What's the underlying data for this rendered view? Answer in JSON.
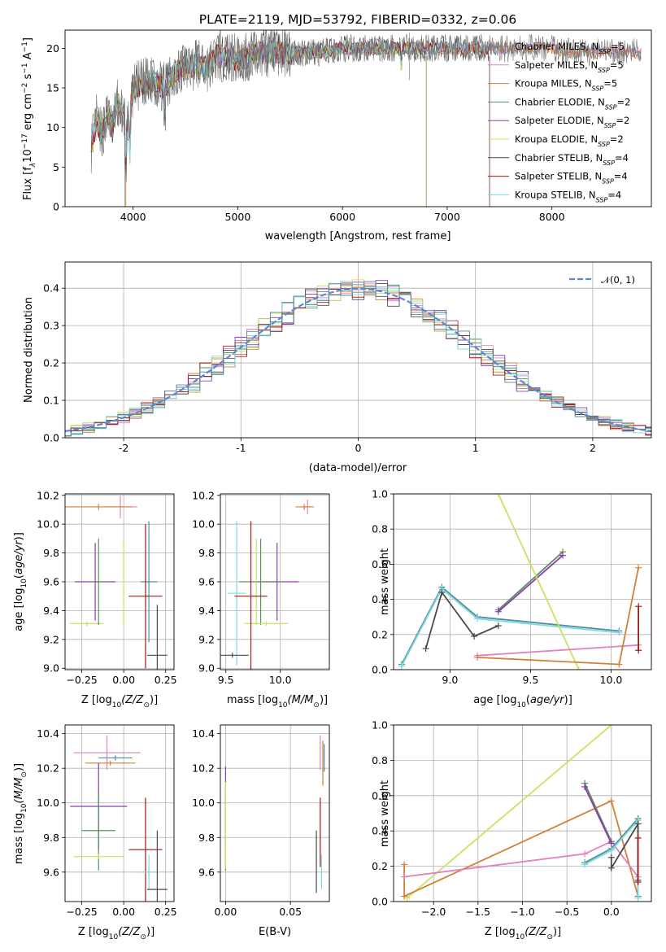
{
  "title": "PLATE=2119, MJD=53792, FIBERID=0332, z=0.06",
  "series_styles": [
    {
      "name": "Chabrier MILES, N$_{SSP}$=5",
      "label_main": "Chabrier MILES, N",
      "label_sub": "SSP",
      "label_tail": "=5",
      "color": "#4e8ea0"
    },
    {
      "name": "Salpeter MILES, N$_{SSP}$=5",
      "label_main": "Salpeter MILES, N",
      "label_sub": "SSP",
      "label_tail": "=5",
      "color": "#e282c0"
    },
    {
      "name": "Kroupa MILES, N$_{SSP}$=5",
      "label_main": "Kroupa MILES, N",
      "label_sub": "SSP",
      "label_tail": "=5",
      "color": "#d0803a"
    },
    {
      "name": "Chabrier ELODIE, N$_{SSP}$=2",
      "label_main": "Chabrier ELODIE, N",
      "label_sub": "SSP",
      "label_tail": "=2",
      "color": "#5e8f5e"
    },
    {
      "name": "Salpeter ELODIE, N$_{SSP}$=2",
      "label_main": "Salpeter ELODIE, N",
      "label_sub": "SSP",
      "label_tail": "=2",
      "color": "#8a3cae"
    },
    {
      "name": "Kroupa ELODIE, N$_{SSP}$=2",
      "label_main": "Kroupa ELODIE, N",
      "label_sub": "SSP",
      "label_tail": "=2",
      "color": "#cde060"
    },
    {
      "name": "Chabrier STELIB, N$_{SSP}$=4",
      "label_main": "Chabrier STELIB, N",
      "label_sub": "SSP",
      "label_tail": "=4",
      "color": "#4a4a4a"
    },
    {
      "name": "Salpeter STELIB, N$_{SSP}$=4",
      "label_main": "Salpeter STELIB, N",
      "label_sub": "SSP",
      "label_tail": "=4",
      "color": "#a01818"
    },
    {
      "name": "Kroupa STELIB, N$_{SSP}$=4",
      "label_main": "Kroupa STELIB, N",
      "label_sub": "SSP",
      "label_tail": "=4",
      "color": "#80d8e0"
    }
  ],
  "chart_data": [
    {
      "id": "spectrum",
      "type": "line",
      "xlabel": "wavelength [Angstrom, rest frame]",
      "ylabel_main": "Flux [f",
      "ylabel_lambda": "λ",
      "ylabel_mid": "10",
      "ylabel_exp1": "−17",
      "ylabel_unit": " erg cm",
      "ylabel_exp2": "−2",
      "ylabel_s": " s",
      "ylabel_exp3": "−1",
      "ylabel_A": " A",
      "ylabel_exp4": "−1",
      "ylabel_end": "]",
      "xlim": [
        3350,
        8950
      ],
      "ylim": [
        0,
        22.3
      ],
      "xticks": [
        4000,
        5000,
        6000,
        7000,
        8000
      ],
      "yticks": [
        0,
        5,
        10,
        15,
        20
      ],
      "legend": "upper-right",
      "observed": {
        "x": [
          3600,
          3650,
          3700,
          3750,
          3800,
          3850,
          3900,
          3950,
          4000,
          4100,
          4200,
          4300,
          4400,
          4500,
          4600,
          4700,
          4800,
          4900,
          5000,
          5200,
          5400,
          5600,
          5800,
          6000,
          6200,
          6400,
          6600,
          6800,
          7000,
          7200,
          7400,
          7600,
          7800,
          8000,
          8200,
          8400,
          8600,
          8800
        ],
        "y": [
          7.5,
          11,
          9,
          11.5,
          10,
          13,
          12,
          9.5,
          15,
          15.5,
          16,
          15,
          17,
          17.5,
          18,
          17.5,
          19,
          19,
          18.5,
          19.5,
          19.5,
          19.5,
          19.5,
          20,
          20,
          20,
          20,
          20,
          20,
          20,
          20,
          20,
          20,
          20,
          19.5,
          19.5,
          19.5,
          19.5
        ]
      }
    },
    {
      "id": "residuals",
      "type": "histogram",
      "xlabel": "(data-model)/error",
      "ylabel": "Normed distribution",
      "xlim": [
        -2.5,
        2.5
      ],
      "ylim": [
        0,
        0.47
      ],
      "xticks": [
        -2,
        -1,
        0,
        1,
        2
      ],
      "yticks": [
        0.0,
        0.1,
        0.2,
        0.3,
        0.4
      ],
      "reference": {
        "name": "N(0,1)",
        "label": "𝒩(0, 1)",
        "mean": 0,
        "sigma": 1
      },
      "legend": "upper-right"
    },
    {
      "id": "age_vs_Z",
      "type": "scatter",
      "xlabel_main": "Z [log",
      "xlabel_sub": "10",
      "xlabel_tail": "(Z/Z",
      "xlabel_sun": "⊙",
      "xlabel_end": ")]",
      "ylabel_main": "age  [log",
      "ylabel_sub": "10",
      "ylabel_tail": "(age/yr)]",
      "xlim": [
        -0.35,
        0.3
      ],
      "ylim": [
        8.99,
        10.21
      ],
      "xticks": [
        -0.25,
        0.0,
        0.25
      ],
      "xticklabels": [
        "−0.25",
        "0.00",
        "0.25"
      ],
      "yticks": [
        9.0,
        9.2,
        9.4,
        9.6,
        9.8,
        10.0,
        10.2
      ],
      "points": [
        {
          "series": 1,
          "x": -0.02,
          "y": 10.12,
          "xerr": 0.1,
          "yerr": 0.08
        },
        {
          "series": 2,
          "x": -0.15,
          "y": 10.12,
          "xerr": 0.2,
          "yerr": 0.02
        },
        {
          "series": 0,
          "x": 0.15,
          "y": 9.6,
          "xerr": 0.05,
          "yerr": 0.42
        },
        {
          "series": 4,
          "x": -0.17,
          "y": 9.6,
          "xerr": 0.12,
          "yerr": 0.27
        },
        {
          "series": 5,
          "x": -0.22,
          "y": 9.31,
          "xerr": 0.1,
          "yerr": 0.0
        },
        {
          "series": 5,
          "x": 0.0,
          "y": 9.6,
          "xerr": 0.0,
          "yerr": 0.3
        },
        {
          "series": 6,
          "x": 0.2,
          "y": 9.09,
          "xerr": 0.06,
          "yerr": 0.35
        },
        {
          "series": 7,
          "x": 0.13,
          "y": 9.5,
          "xerr": 0.1,
          "yerr": 0.5
        },
        {
          "series": 3,
          "x": -0.15,
          "y": 9.6,
          "xerr": 0.05,
          "yerr": 0.3
        }
      ]
    },
    {
      "id": "age_vs_mass",
      "type": "scatter",
      "xlabel_main": "mass [log",
      "xlabel_sub": "10",
      "xlabel_tail": "(M/M",
      "xlabel_sun": "⊙",
      "xlabel_end": ")]",
      "xlim": [
        9.45,
        10.45
      ],
      "ylim": [
        8.99,
        10.21
      ],
      "xticks": [
        9.5,
        10.0
      ],
      "xticklabels": [
        "9.5",
        "10.0"
      ],
      "yticks": [
        9.0,
        9.2,
        9.4,
        9.6,
        9.8,
        10.0,
        10.2
      ],
      "points": [
        {
          "series": 1,
          "x": 10.25,
          "y": 10.12,
          "xerr": 0.06,
          "yerr": 0.05
        },
        {
          "series": 2,
          "x": 10.22,
          "y": 10.12,
          "xerr": 0.08,
          "yerr": 0.02
        },
        {
          "series": 8,
          "x": 9.6,
          "y": 9.52,
          "xerr": 0.08,
          "yerr": 0.5
        },
        {
          "series": 4,
          "x": 9.97,
          "y": 9.6,
          "xerr": 0.2,
          "yerr": 0.27
        },
        {
          "series": 3,
          "x": 9.82,
          "y": 9.6,
          "xerr": 0.2,
          "yerr": 0.3
        },
        {
          "series": 5,
          "x": 9.87,
          "y": 9.31,
          "xerr": 0.2,
          "yerr": 0.0
        },
        {
          "series": 5,
          "x": 9.78,
          "y": 9.6,
          "xerr": 0.0,
          "yerr": 0.3
        },
        {
          "series": 6,
          "x": 9.56,
          "y": 9.09,
          "xerr": 0.15,
          "yerr": 0.0
        },
        {
          "series": 7,
          "x": 9.73,
          "y": 9.5,
          "xerr": 0.15,
          "yerr": 0.52
        }
      ]
    },
    {
      "id": "mass_weight_vs_age",
      "type": "line",
      "xlabel_main": "age  [log",
      "xlabel_sub": "10",
      "xlabel_tail": "(age/yr)]",
      "ylabel": "mass weight",
      "xlim": [
        8.65,
        10.25
      ],
      "ylim": [
        0,
        1.0
      ],
      "xticks": [
        9.0,
        9.5,
        10.0
      ],
      "xticklabels": [
        "9.0",
        "9.5",
        "10.0"
      ],
      "yticks": [
        0.0,
        0.2,
        0.4,
        0.6,
        0.8,
        1.0
      ],
      "series": [
        {
          "series": 0,
          "x": [
            8.7,
            8.95,
            9.17,
            10.05
          ],
          "y": [
            0.03,
            0.47,
            0.3,
            0.22
          ]
        },
        {
          "series": 8,
          "x": [
            8.7,
            8.95,
            9.17,
            10.05
          ],
          "y": [
            0.02,
            0.46,
            0.29,
            0.21
          ]
        },
        {
          "series": 6,
          "x": [
            8.85,
            8.95,
            9.15,
            9.3
          ],
          "y": [
            0.12,
            0.44,
            0.19,
            0.25
          ]
        },
        {
          "series": 3,
          "x": [
            9.3,
            9.7
          ],
          "y": [
            0.34,
            0.67
          ]
        },
        {
          "series": 4,
          "x": [
            9.3,
            9.7
          ],
          "y": [
            0.33,
            0.65
          ]
        },
        {
          "series": 5,
          "x": [
            9.3,
            9.8
          ],
          "y": [
            1.0,
            0.0
          ]
        },
        {
          "series": 1,
          "x": [
            9.17,
            10.17
          ],
          "y": [
            0.08,
            0.14
          ]
        },
        {
          "series": 2,
          "x": [
            9.17,
            10.05,
            10.17
          ],
          "y": [
            0.07,
            0.03,
            0.58
          ]
        },
        {
          "series": 7,
          "x": [
            10.17,
            10.17
          ],
          "y": [
            0.11,
            0.36
          ]
        }
      ]
    },
    {
      "id": "mass_vs_Z",
      "type": "scatter",
      "xlabel_main": "Z [log",
      "xlabel_sub": "10",
      "xlabel_tail": "(Z/Z",
      "xlabel_sun": "⊙",
      "xlabel_end": ")]",
      "ylabel_main": "mass [log",
      "ylabel_sub": "10",
      "ylabel_tail": "(M/M",
      "ylabel_sun": "⊙",
      "ylabel_end": ")]",
      "xlim": [
        -0.35,
        0.3
      ],
      "ylim": [
        9.43,
        10.45
      ],
      "xticks": [
        -0.25,
        0.0,
        0.25
      ],
      "xticklabels": [
        "−0.25",
        "0.00",
        "0.25"
      ],
      "yticks": [
        9.6,
        9.8,
        10.0,
        10.2,
        10.4
      ],
      "points": [
        {
          "series": 1,
          "x": -0.1,
          "y": 10.29,
          "xerr": 0.2,
          "yerr": 0.1
        },
        {
          "series": 2,
          "x": -0.08,
          "y": 10.23,
          "xerr": 0.15,
          "yerr": 0.0
        },
        {
          "series": 0,
          "x": -0.05,
          "y": 10.26,
          "xerr": 0.1,
          "yerr": 0.0
        },
        {
          "series": 4,
          "x": -0.15,
          "y": 9.98,
          "xerr": 0.17,
          "yerr": 0.25
        },
        {
          "series": 3,
          "x": -0.15,
          "y": 9.84,
          "xerr": 0.1,
          "yerr": 0.23
        },
        {
          "series": 5,
          "x": -0.15,
          "y": 9.69,
          "xerr": 0.15,
          "yerr": 0.0
        },
        {
          "series": 7,
          "x": 0.13,
          "y": 9.73,
          "xerr": 0.1,
          "yerr": 0.3
        },
        {
          "series": 8,
          "x": 0.15,
          "y": 9.6,
          "xerr": 0.05,
          "yerr": 0.1
        },
        {
          "series": 6,
          "x": 0.2,
          "y": 9.5,
          "xerr": 0.06,
          "yerr": 0.34
        }
      ]
    },
    {
      "id": "mass_vs_EBV",
      "type": "scatter",
      "xlabel": "E(B-V)",
      "xlim": [
        -0.004,
        0.08
      ],
      "ylim": [
        9.43,
        10.45
      ],
      "xticks": [
        0.0,
        0.05
      ],
      "xticklabels": [
        "0.00",
        "0.05"
      ],
      "yticks": [
        9.6,
        9.8,
        10.0,
        10.2,
        10.4
      ],
      "points": [
        {
          "series": 1,
          "x": 0.073,
          "y": 10.29,
          "xerr": 0,
          "yerr": 0.1
        },
        {
          "series": 2,
          "x": 0.075,
          "y": 10.23,
          "xerr": 0,
          "yerr": 0.13
        },
        {
          "series": 0,
          "x": 0.076,
          "y": 10.26,
          "xerr": 0,
          "yerr": 0.08
        },
        {
          "series": 4,
          "x": 0.0,
          "y": 9.98,
          "xerr": 0,
          "yerr": 0.23
        },
        {
          "series": 3,
          "x": 0.0,
          "y": 9.84,
          "xerr": 0,
          "yerr": 0.23
        },
        {
          "series": 5,
          "x": 0.0,
          "y": 9.87,
          "xerr": 0,
          "yerr": 0.25
        },
        {
          "series": 7,
          "x": 0.073,
          "y": 9.83,
          "xerr": 0,
          "yerr": 0.2
        },
        {
          "series": 8,
          "x": 0.074,
          "y": 9.6,
          "xerr": 0,
          "yerr": 0.1
        },
        {
          "series": 6,
          "x": 0.07,
          "y": 9.66,
          "xerr": 0,
          "yerr": 0.18
        }
      ]
    },
    {
      "id": "mass_weight_vs_Z",
      "type": "line",
      "xlabel_main": "Z [log",
      "xlabel_sub": "10",
      "xlabel_tail": "(Z/Z",
      "xlabel_sun": "⊙",
      "xlabel_end": ")]",
      "ylabel": "mass weight",
      "xlim": [
        -2.45,
        0.45
      ],
      "ylim": [
        0,
        1.0
      ],
      "xticks": [
        -2.0,
        -1.5,
        -1.0,
        -0.5,
        0.0
      ],
      "xticklabels": [
        "−2.0",
        "−1.5",
        "−1.0",
        "−0.5",
        "0.0"
      ],
      "yticks": [
        0.0,
        0.2,
        0.4,
        0.6,
        0.8,
        1.0
      ],
      "series": [
        {
          "series": 5,
          "x": [
            -2.3,
            0.0
          ],
          "y": [
            0.02,
            1.0
          ]
        },
        {
          "series": 2,
          "x": [
            -2.33,
            -2.33,
            0.0,
            0.3,
            0.3
          ],
          "y": [
            0.21,
            0.03,
            0.57,
            0.03,
            0.47
          ]
        },
        {
          "series": 1,
          "x": [
            -2.33,
            -0.3,
            0.0,
            0.3
          ],
          "y": [
            0.14,
            0.27,
            0.34,
            0.14
          ]
        },
        {
          "series": 3,
          "x": [
            -0.3,
            0.0
          ],
          "y": [
            0.67,
            0.34
          ]
        },
        {
          "series": 4,
          "x": [
            -0.3,
            0.0
          ],
          "y": [
            0.65,
            0.33
          ]
        },
        {
          "series": 0,
          "x": [
            -0.3,
            0.0,
            0.3,
            0.3
          ],
          "y": [
            0.22,
            0.3,
            0.47,
            0.03
          ]
        },
        {
          "series": 8,
          "x": [
            -0.3,
            0.0,
            0.3,
            0.3
          ],
          "y": [
            0.21,
            0.29,
            0.46,
            0.02
          ]
        },
        {
          "series": 6,
          "x": [
            0.0,
            0.0,
            0.3,
            0.3
          ],
          "y": [
            0.25,
            0.19,
            0.44,
            0.12
          ]
        },
        {
          "series": 7,
          "x": [
            0.3,
            0.3
          ],
          "y": [
            0.11,
            0.36
          ]
        }
      ]
    }
  ]
}
